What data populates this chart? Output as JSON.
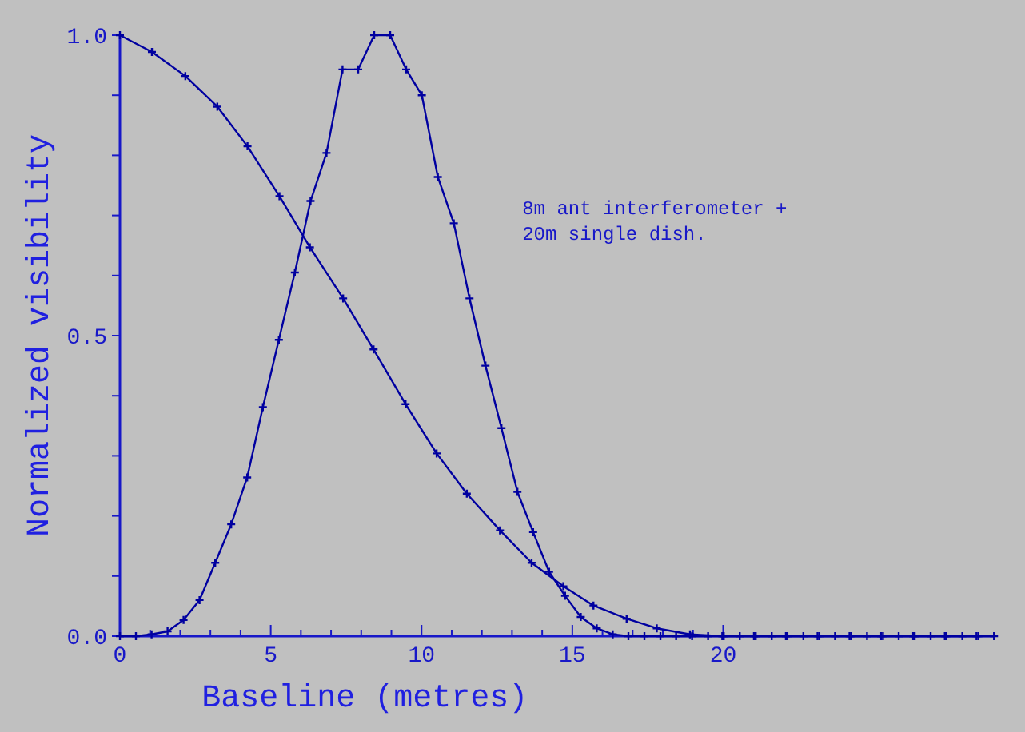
{
  "chart_data": {
    "type": "line",
    "xlabel": "Baseline (metres)",
    "ylabel": "Normalized visibility",
    "annotations": [
      "8m ant interferometer +\n20m single dish."
    ],
    "xlim": [
      0,
      29
    ],
    "ylim": [
      0,
      1
    ],
    "xticks": [
      0,
      {
        "value": 1,
        "label": null
      },
      {
        "value": 2,
        "label": null
      },
      {
        "value": 3,
        "label": null
      },
      {
        "value": 4,
        "label": null
      },
      5,
      {
        "value": 6,
        "label": null
      },
      {
        "value": 7,
        "label": null
      },
      {
        "value": 8,
        "label": null
      },
      {
        "value": 9,
        "label": null
      },
      10,
      {
        "value": 11,
        "label": null
      },
      {
        "value": 12,
        "label": null
      },
      {
        "value": 13,
        "label": null
      },
      {
        "value": 14,
        "label": null
      },
      15,
      {
        "value": 16,
        "label": null
      },
      {
        "value": 17,
        "label": null
      },
      {
        "value": 18,
        "label": null
      },
      {
        "value": 19,
        "label": null
      },
      20
    ],
    "yticks": [
      {
        "value": 0,
        "label": "0.0"
      },
      {
        "value": 0.1,
        "label": null
      },
      {
        "value": 0.2,
        "label": null
      },
      {
        "value": 0.3,
        "label": null
      },
      {
        "value": 0.4,
        "label": null
      },
      {
        "value": 0.5,
        "label": "0.5"
      },
      {
        "value": 0.6,
        "label": null
      },
      {
        "value": 0.7,
        "label": null
      },
      {
        "value": 0.8,
        "label": null
      },
      {
        "value": 0.9,
        "label": null
      },
      {
        "value": 1,
        "label": "1.0"
      }
    ],
    "marker": "cross",
    "line_style": "solid",
    "series": [
      {
        "color": "#0000a0",
        "x": [
          0,
          1.06,
          2.17,
          3.23,
          4.23,
          5.29,
          6.3,
          7.4,
          8.41,
          9.47,
          10.5,
          11.5,
          12.6,
          13.65,
          14.7,
          15.7,
          16.8,
          17.8,
          18.9,
          19.97,
          21.02,
          22.08,
          23.13,
          24.19,
          25.24,
          26.3,
          27.35,
          28.4
        ],
        "values": [
          1.0,
          0.972,
          0.932,
          0.881,
          0.815,
          0.732,
          0.647,
          0.562,
          0.477,
          0.386,
          0.304,
          0.237,
          0.176,
          0.122,
          0.083,
          0.051,
          0.029,
          0.013,
          0.003,
          0,
          0,
          0,
          0,
          0,
          0,
          0,
          0,
          0
        ]
      },
      {
        "color": "#0000a0",
        "x": [
          0,
          0.53,
          1.05,
          1.58,
          2.11,
          2.64,
          3.16,
          3.69,
          4.22,
          4.74,
          5.27,
          5.8,
          6.32,
          6.85,
          7.38,
          7.9,
          8.43,
          8.96,
          9.49,
          10.01,
          10.54,
          11.07,
          11.59,
          12.12,
          12.65,
          13.18,
          13.7,
          14.23,
          14.76,
          15.28,
          15.81,
          16.34,
          16.86,
          17.39,
          17.92,
          18.44,
          18.97,
          19.5,
          20.02,
          20.55,
          21.08,
          21.61,
          22.13,
          22.66,
          23.19,
          23.71,
          24.24,
          24.77,
          25.3,
          25.82,
          26.35,
          26.88,
          27.4,
          27.93,
          28.46,
          28.98
        ],
        "values": [
          0,
          0,
          0.003,
          0.008,
          0.027,
          0.06,
          0.122,
          0.186,
          0.264,
          0.381,
          0.493,
          0.605,
          0.724,
          0.804,
          0.943,
          0.943,
          1.0,
          1.0,
          0.943,
          0.9,
          0.764,
          0.687,
          0.562,
          0.45,
          0.346,
          0.24,
          0.173,
          0.107,
          0.067,
          0.032,
          0.013,
          0.003,
          0,
          0,
          0,
          0,
          0,
          0,
          0,
          0,
          0,
          0,
          0,
          0,
          0,
          0,
          0,
          0,
          0,
          0,
          0,
          0,
          0,
          0,
          0,
          0
        ]
      }
    ]
  }
}
